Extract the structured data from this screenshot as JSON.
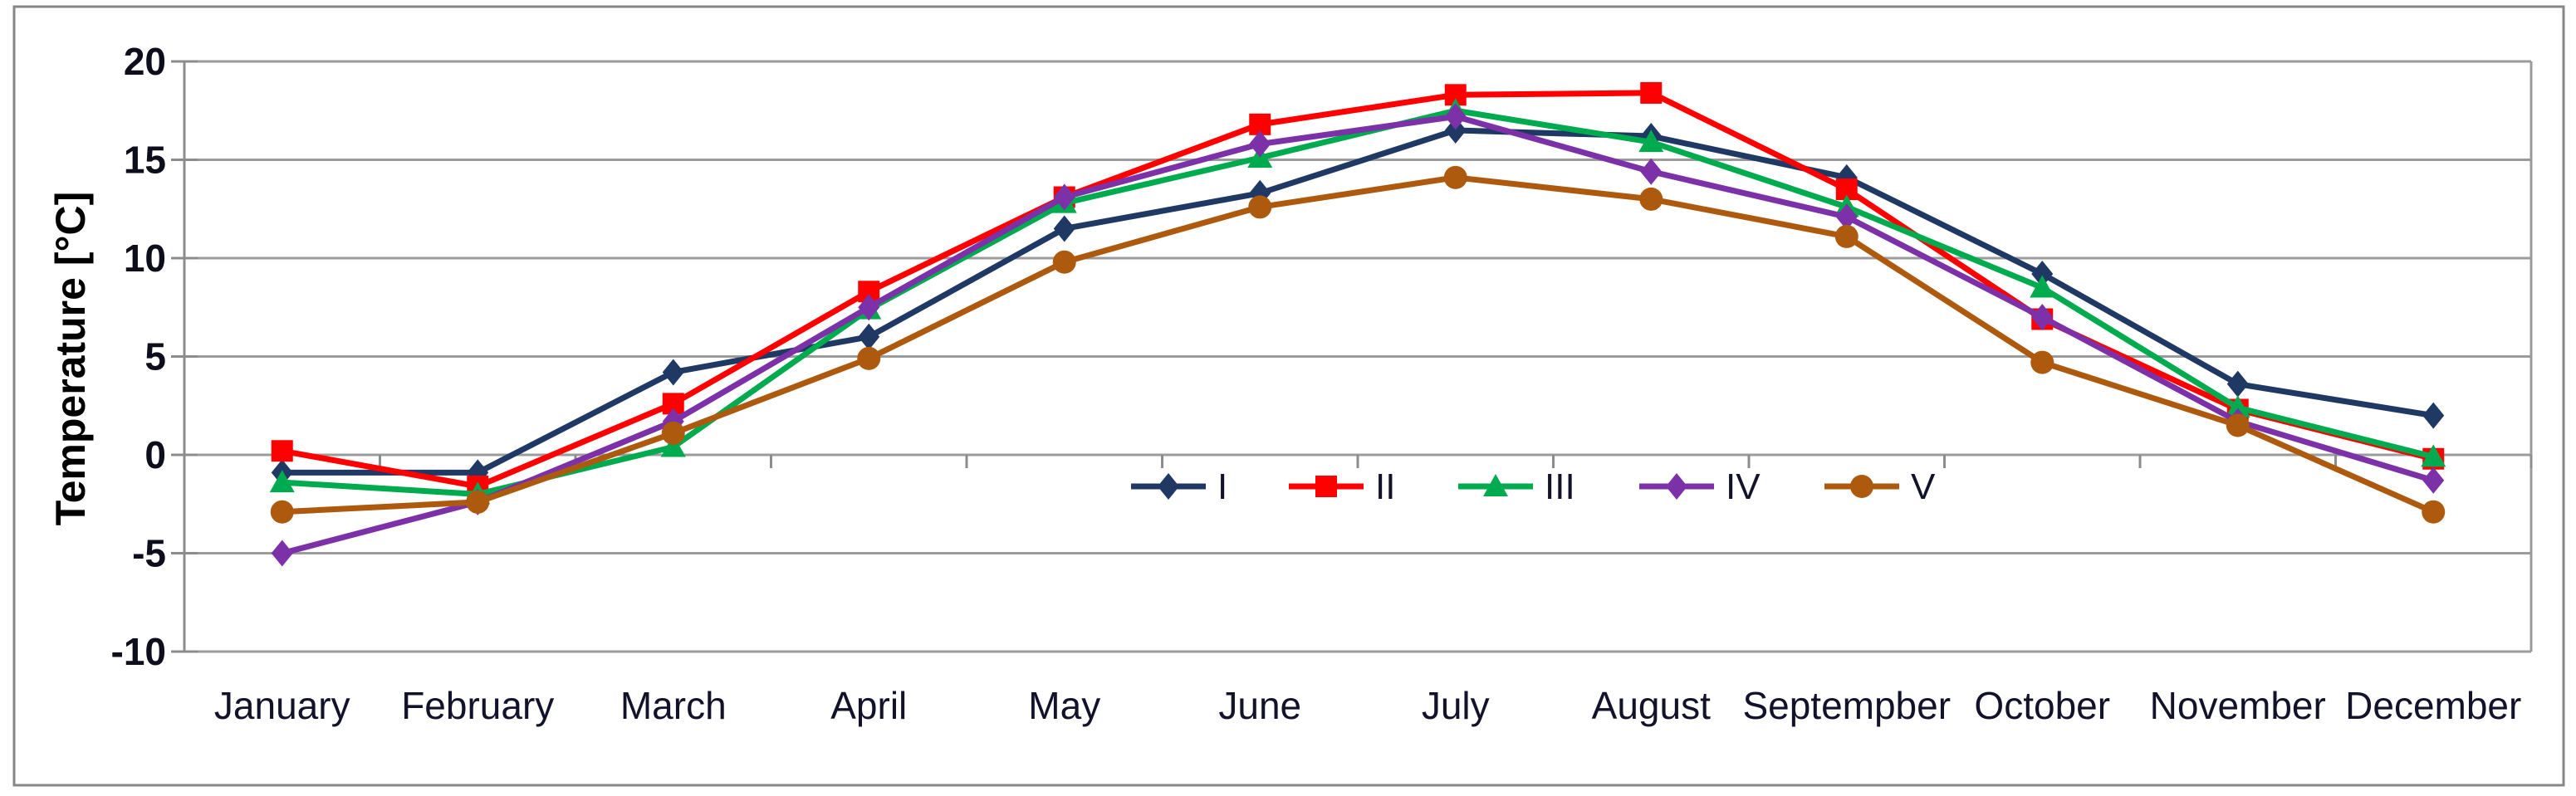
{
  "chart_data": {
    "type": "line",
    "title": "",
    "xlabel": "",
    "ylabel": "Temperature [°C]",
    "ylim": [
      -10,
      20
    ],
    "y_ticks": [
      20,
      15,
      10,
      5,
      0,
      -5,
      -10
    ],
    "grid": "horizontal",
    "legend_position": "inline-center-below-zero-line",
    "background_color": "#FFFFFF",
    "gridline_color": "#9b9b9b",
    "axis_color": "#8c8c8c",
    "frame_color": "#878787",
    "categories": [
      "January",
      "February",
      "March",
      "April",
      "May",
      "June",
      "July",
      "August",
      "Septempber",
      "October",
      "November",
      "December"
    ],
    "series": [
      {
        "name": "I",
        "color": "#1F3864",
        "marker": "diamond",
        "values": [
          -0.9,
          -0.9,
          4.2,
          6.0,
          11.5,
          13.3,
          16.5,
          16.2,
          14.1,
          9.2,
          3.6,
          2.0
        ]
      },
      {
        "name": "II",
        "color": "#FF0000",
        "marker": "square",
        "values": [
          0.2,
          -1.6,
          2.6,
          8.3,
          13.1,
          16.8,
          18.3,
          18.4,
          13.5,
          6.9,
          2.3,
          -0.2
        ]
      },
      {
        "name": "III",
        "color": "#00AB50",
        "marker": "triangle",
        "values": [
          -1.4,
          -2.0,
          0.4,
          7.4,
          12.8,
          15.1,
          17.5,
          15.9,
          12.6,
          8.5,
          2.4,
          -0.1
        ]
      },
      {
        "name": "IV",
        "color": "#7D31A8",
        "marker": "diamond",
        "values": [
          -5.0,
          -2.4,
          1.7,
          7.5,
          13.1,
          15.8,
          17.2,
          14.4,
          12.1,
          7.0,
          1.7,
          -1.3
        ]
      },
      {
        "name": "V",
        "color": "#AE5A0E",
        "marker": "circle",
        "values": [
          -2.9,
          -2.4,
          1.1,
          4.9,
          9.8,
          12.6,
          14.1,
          13.0,
          11.1,
          4.7,
          1.5,
          -2.9
        ]
      }
    ]
  }
}
